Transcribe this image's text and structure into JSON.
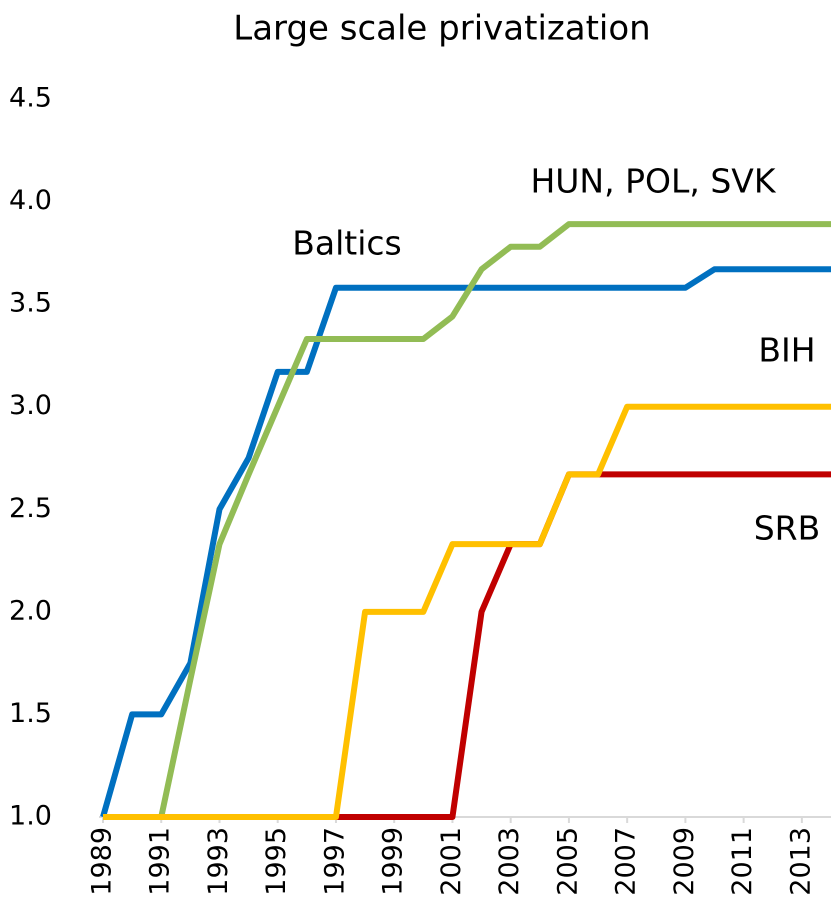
{
  "chart_data": {
    "type": "line",
    "title": "Large scale privatization",
    "x": [
      1989,
      1990,
      1991,
      1992,
      1993,
      1994,
      1995,
      1996,
      1997,
      1998,
      1999,
      2000,
      2001,
      2002,
      2003,
      2004,
      2005,
      2006,
      2007,
      2008,
      2009,
      2010,
      2011,
      2012,
      2013,
      2014
    ],
    "series": [
      {
        "name": "SRB",
        "color": "#c00000",
        "values": [
          1,
          1,
          1,
          1,
          1,
          1,
          1,
          1,
          1,
          1,
          1,
          1,
          1,
          2,
          2.33,
          2.33,
          2.67,
          2.67,
          2.67,
          2.67,
          2.67,
          2.67,
          2.67,
          2.67,
          2.67,
          2.67
        ]
      },
      {
        "name": "Baltics",
        "color": "#0070c0",
        "values": [
          1,
          1.5,
          1.5,
          1.75,
          2.5,
          2.75,
          3.17,
          3.17,
          3.58,
          3.58,
          3.58,
          3.58,
          3.58,
          3.58,
          3.58,
          3.58,
          3.58,
          3.58,
          3.58,
          3.58,
          3.58,
          3.67,
          3.67,
          3.67,
          3.67,
          3.67
        ]
      },
      {
        "name": "HUN, POL, SVK",
        "color": "#92bc55",
        "values": [
          1,
          1,
          1,
          1.67,
          2.33,
          2.67,
          3,
          3.33,
          3.33,
          3.33,
          3.33,
          3.33,
          3.44,
          3.67,
          3.78,
          3.78,
          3.89,
          3.89,
          3.89,
          3.89,
          3.89,
          3.89,
          3.89,
          3.89,
          3.89,
          3.89
        ]
      },
      {
        "name": "BIH",
        "color": "#ffc000",
        "values": [
          1,
          1,
          1,
          1,
          1,
          1,
          1,
          1,
          1,
          2,
          2,
          2,
          2.33,
          2.33,
          2.33,
          2.33,
          2.67,
          2.67,
          3,
          3,
          3,
          3,
          3,
          3,
          3,
          3
        ]
      }
    ],
    "xlim": [
      1989,
      2014
    ],
    "xticks": [
      1989,
      1991,
      1993,
      1995,
      1997,
      1999,
      2001,
      2003,
      2005,
      2007,
      2009,
      2011,
      2013
    ],
    "ylim": [
      1,
      4.5
    ],
    "yticks": [
      {
        "value": 1,
        "label": "1.0"
      },
      1.5,
      {
        "value": 2,
        "label": "2.0"
      },
      2.5,
      {
        "value": 3,
        "label": "3.0"
      },
      3.5,
      {
        "value": 4,
        "label": "4.0"
      },
      4.5
    ]
  }
}
